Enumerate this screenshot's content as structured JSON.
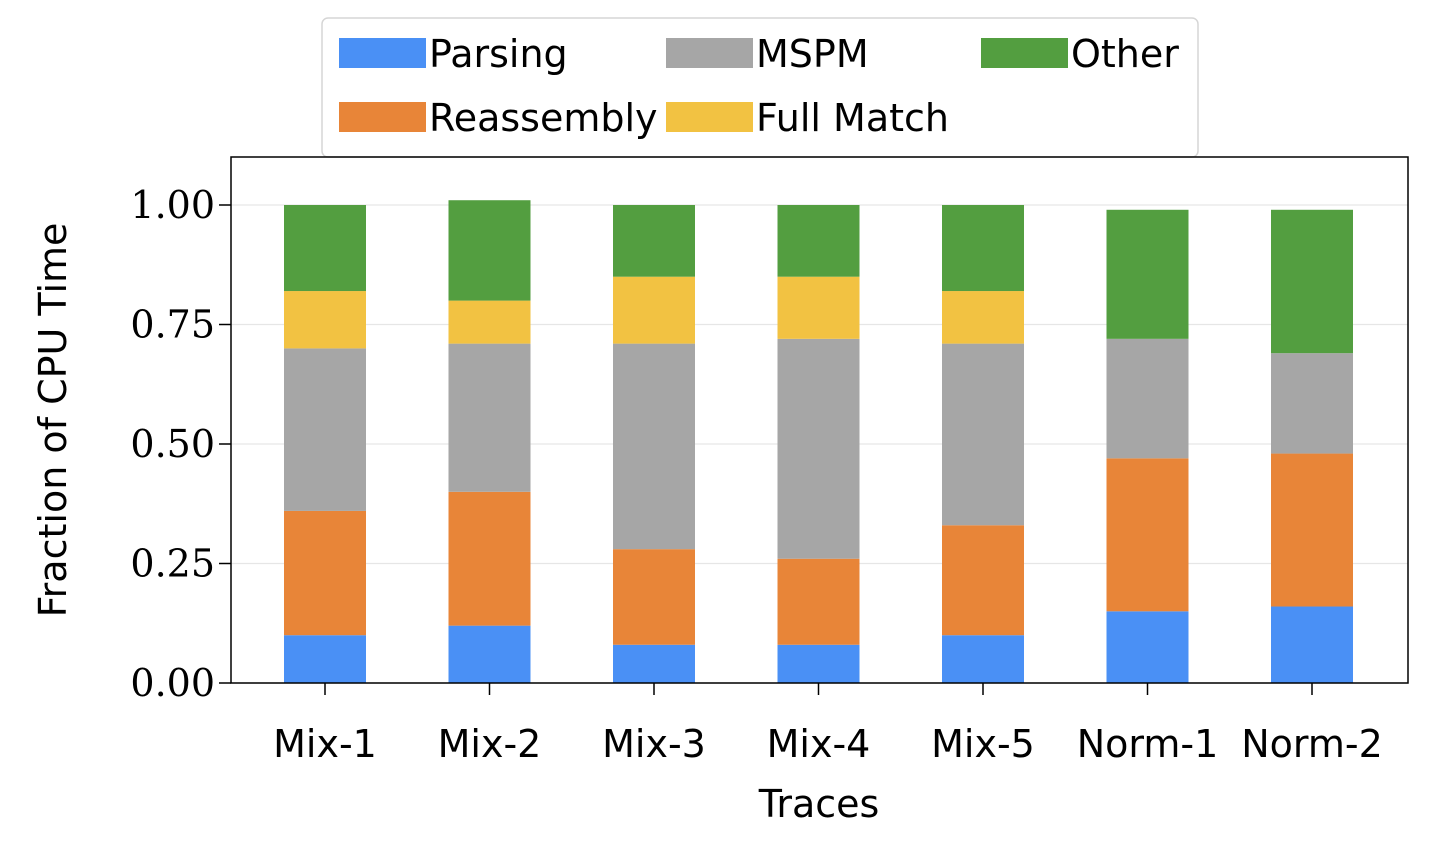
{
  "chart_data": {
    "type": "bar",
    "stacked": true,
    "xlabel": "Traces",
    "ylabel": "Fraction of CPU Time",
    "ylim": [
      0,
      1.1
    ],
    "yticks": [
      "0.00",
      "0.25",
      "0.50",
      "0.75",
      "1.00"
    ],
    "ytick_values": [
      0,
      0.25,
      0.5,
      0.75,
      1.0
    ],
    "grid": true,
    "legend_position": "top",
    "categories": [
      "Mix-1",
      "Mix-2",
      "Mix-3",
      "Mix-4",
      "Mix-5",
      "Norm-1",
      "Norm-2"
    ],
    "series": [
      {
        "name": "Parsing",
        "color": "#4a90f5",
        "values": [
          0.1,
          0.12,
          0.08,
          0.08,
          0.1,
          0.15,
          0.16
        ]
      },
      {
        "name": "Reassembly",
        "color": "#e88538",
        "values": [
          0.26,
          0.28,
          0.2,
          0.18,
          0.23,
          0.32,
          0.32
        ]
      },
      {
        "name": "MSPM",
        "color": "#a6a6a6",
        "values": [
          0.34,
          0.31,
          0.43,
          0.46,
          0.38,
          0.25,
          0.21
        ]
      },
      {
        "name": "Full Match",
        "color": "#f2c242",
        "values": [
          0.12,
          0.09,
          0.14,
          0.13,
          0.11,
          0.0,
          0.0
        ]
      },
      {
        "name": "Other",
        "color": "#539e40",
        "values": [
          0.18,
          0.21,
          0.15,
          0.15,
          0.18,
          0.27,
          0.3
        ]
      }
    ]
  }
}
